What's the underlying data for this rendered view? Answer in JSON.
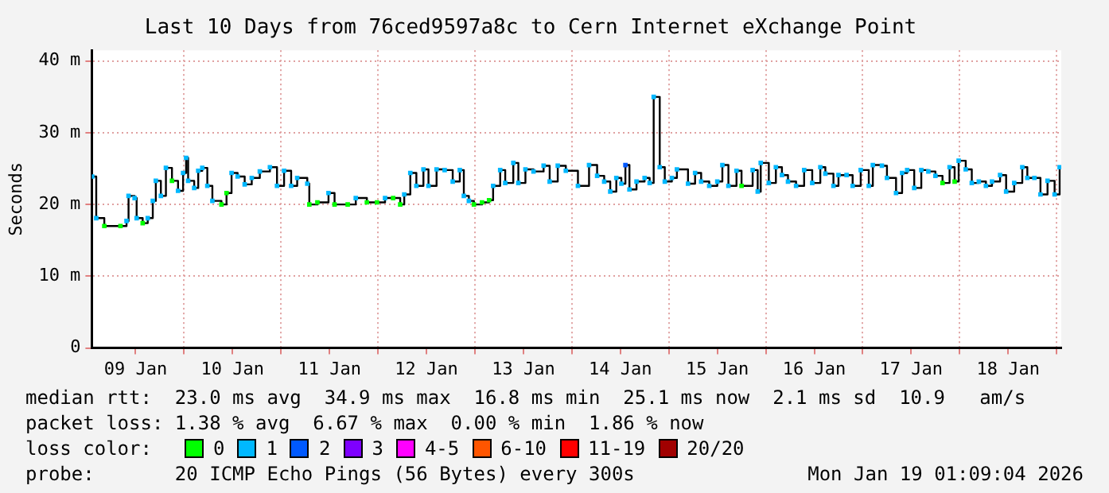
{
  "chart_data": {
    "type": "step",
    "title": "Last 10 Days from 76ced9597a8c to Cern Internet eXchange Point",
    "ylabel": "Seconds",
    "xlim": [
      "2026-01-09T01:09",
      "2026-01-19T01:09"
    ],
    "xticks": [
      {
        "value": "2026-01-09T12:00",
        "label": "09 Jan"
      },
      {
        "value": "2026-01-10T00:00",
        "label": null
      },
      {
        "value": "2026-01-10T12:00",
        "label": "10 Jan"
      },
      {
        "value": "2026-01-11T00:00",
        "label": null
      },
      {
        "value": "2026-01-11T12:00",
        "label": "11 Jan"
      },
      {
        "value": "2026-01-12T00:00",
        "label": null
      },
      {
        "value": "2026-01-12T12:00",
        "label": "12 Jan"
      },
      {
        "value": "2026-01-13T00:00",
        "label": null
      },
      {
        "value": "2026-01-13T12:00",
        "label": "13 Jan"
      },
      {
        "value": "2026-01-14T00:00",
        "label": null
      },
      {
        "value": "2026-01-14T12:00",
        "label": "14 Jan"
      },
      {
        "value": "2026-01-15T00:00",
        "label": null
      },
      {
        "value": "2026-01-15T12:00",
        "label": "15 Jan"
      },
      {
        "value": "2026-01-16T00:00",
        "label": null
      },
      {
        "value": "2026-01-16T12:00",
        "label": "16 Jan"
      },
      {
        "value": "2026-01-17T00:00",
        "label": null
      },
      {
        "value": "2026-01-17T12:00",
        "label": "17 Jan"
      },
      {
        "value": "2026-01-18T00:00",
        "label": null
      },
      {
        "value": "2026-01-18T12:00",
        "label": "18 Jan"
      },
      {
        "value": "2026-01-19T00:00",
        "label": null
      }
    ],
    "ylim": [
      0,
      41.5
    ],
    "yticks": [
      0,
      {
        "value": 10,
        "label": "10 m"
      },
      {
        "value": 20,
        "label": "20 m"
      },
      {
        "value": 30,
        "label": "30 m"
      },
      {
        "value": 40,
        "label": "40 m"
      }
    ],
    "grid": true,
    "legend": "bottom",
    "legend_title": "loss color:",
    "marker": "square",
    "series": [
      {
        "color": "#000000",
        "x": [
          "2026-01-09T01:15",
          "2026-01-09T02:15",
          "2026-01-09T04:15",
          "2026-01-09T08:15",
          "2026-01-09T09:45",
          "2026-01-09T10:15",
          "2026-01-09T11:45",
          "2026-01-09T12:15",
          "2026-01-09T13:45",
          "2026-01-09T15:00",
          "2026-01-09T16:15",
          "2026-01-09T17:00",
          "2026-01-09T18:15",
          "2026-01-09T19:30",
          "2026-01-09T21:00",
          "2026-01-09T22:30",
          "2026-01-09T23:45",
          "2026-01-10T00:30",
          "2026-01-10T01:00",
          "2026-01-10T02:30",
          "2026-01-10T03:30",
          "2026-01-10T04:30",
          "2026-01-10T05:45",
          "2026-01-10T07:00",
          "2026-01-10T09:15",
          "2026-01-10T10:30",
          "2026-01-10T11:45",
          "2026-01-10T13:15",
          "2026-01-10T15:00",
          "2026-01-10T16:45",
          "2026-01-10T18:45",
          "2026-01-10T21:15",
          "2026-01-10T23:00",
          "2026-01-11T00:45",
          "2026-01-11T02:30",
          "2026-01-11T04:00",
          "2026-01-11T06:30",
          "2026-01-11T07:00",
          "2026-01-11T09:00",
          "2026-01-11T11:45",
          "2026-01-11T13:15",
          "2026-01-11T16:30",
          "2026-01-11T18:30",
          "2026-01-11T21:15",
          "2026-01-11T23:45",
          "2026-01-12T01:45",
          "2026-01-12T03:45",
          "2026-01-12T05:30",
          "2026-01-12T06:30",
          "2026-01-12T08:00",
          "2026-01-12T09:30",
          "2026-01-12T11:15",
          "2026-01-12T12:30",
          "2026-01-12T14:30",
          "2026-01-12T16:30",
          "2026-01-12T18:30",
          "2026-01-12T20:15",
          "2026-01-12T21:15",
          "2026-01-12T22:30",
          "2026-01-12T23:45",
          "2026-01-13T01:45",
          "2026-01-13T03:30",
          "2026-01-13T04:30",
          "2026-01-13T06:15",
          "2026-01-13T07:30",
          "2026-01-13T09:30",
          "2026-01-13T10:45",
          "2026-01-13T12:30",
          "2026-01-13T14:30",
          "2026-01-13T17:00",
          "2026-01-13T18:30",
          "2026-01-13T20:30",
          "2026-01-13T22:30",
          "2026-01-14T01:30",
          "2026-01-14T04:15",
          "2026-01-14T06:15",
          "2026-01-14T08:00",
          "2026-01-14T09:30",
          "2026-01-14T11:00",
          "2026-01-14T12:15",
          "2026-01-14T13:15",
          "2026-01-14T14:15",
          "2026-01-14T16:00",
          "2026-01-14T18:00",
          "2026-01-14T19:15",
          "2026-01-14T20:15",
          "2026-01-14T21:45",
          "2026-01-14T23:00",
          "2026-01-15T00:45",
          "2026-01-15T02:00",
          "2026-01-15T04:45",
          "2026-01-15T06:30",
          "2026-01-15T08:00",
          "2026-01-15T10:00",
          "2026-01-15T12:00",
          "2026-01-15T13:15",
          "2026-01-15T14:45",
          "2026-01-15T16:45",
          "2026-01-15T18:00",
          "2026-01-15T20:45",
          "2026-01-15T22:00",
          "2026-01-15T22:45",
          "2026-01-16T00:45",
          "2026-01-16T02:30",
          "2026-01-16T04:00",
          "2026-01-16T05:30",
          "2026-01-16T07:30",
          "2026-01-16T09:30",
          "2026-01-16T11:30",
          "2026-01-16T13:30",
          "2026-01-16T14:45",
          "2026-01-16T16:45",
          "2026-01-16T18:00",
          "2026-01-16T20:00",
          "2026-01-16T21:30",
          "2026-01-16T23:30",
          "2026-01-17T01:30",
          "2026-01-17T02:30",
          "2026-01-17T04:45",
          "2026-01-17T06:00",
          "2026-01-17T08:15",
          "2026-01-17T09:45",
          "2026-01-17T11:00",
          "2026-01-17T12:45",
          "2026-01-17T14:30",
          "2026-01-17T16:15",
          "2026-01-17T18:00",
          "2026-01-17T19:45",
          "2026-01-17T21:30",
          "2026-01-17T22:45",
          "2026-01-17T23:45",
          "2026-01-18T01:30",
          "2026-01-18T03:00",
          "2026-01-18T04:45",
          "2026-01-18T06:30",
          "2026-01-18T08:00",
          "2026-01-18T10:00",
          "2026-01-18T11:30",
          "2026-01-18T13:30",
          "2026-01-18T15:30",
          "2026-01-18T16:45",
          "2026-01-18T18:30",
          "2026-01-18T20:00",
          "2026-01-18T21:45",
          "2026-01-18T23:30",
          "2026-01-19T00:45"
        ],
        "values": [
          23.9,
          18.1,
          17.0,
          17.0,
          17.7,
          21.2,
          20.9,
          18.1,
          17.4,
          18.1,
          20.5,
          23.3,
          21.2,
          25.1,
          23.3,
          21.9,
          24.4,
          26.5,
          23.3,
          22.3,
          24.7,
          25.1,
          22.6,
          20.5,
          20.0,
          21.6,
          24.4,
          23.9,
          22.8,
          23.7,
          24.6,
          25.2,
          22.6,
          24.7,
          22.6,
          23.7,
          22.9,
          20.0,
          20.3,
          21.6,
          20.0,
          20.0,
          20.9,
          20.3,
          20.3,
          20.9,
          20.9,
          20.0,
          21.4,
          24.4,
          22.6,
          24.9,
          22.6,
          24.9,
          24.8,
          23.2,
          24.8,
          21.2,
          20.5,
          20.0,
          20.3,
          20.6,
          22.6,
          24.8,
          23.0,
          25.8,
          23.0,
          24.9,
          24.6,
          25.4,
          23.2,
          25.4,
          24.7,
          22.6,
          25.5,
          24.0,
          23.2,
          21.8,
          23.7,
          22.9,
          25.5,
          22.1,
          23.2,
          23.7,
          23.0,
          35.0,
          25.2,
          23.2,
          23.7,
          24.9,
          22.9,
          24.4,
          23.2,
          22.6,
          23.2,
          25.5,
          22.6,
          24.7,
          22.6,
          24.8,
          21.8,
          25.8,
          23.0,
          25.2,
          24.1,
          23.2,
          22.6,
          24.8,
          23.0,
          25.2,
          24.3,
          22.6,
          24.1,
          24.1,
          22.6,
          24.8,
          22.6,
          25.5,
          25.4,
          23.7,
          21.6,
          24.4,
          24.8,
          22.3,
          24.8,
          24.6,
          24.0,
          23.0,
          25.2,
          23.2,
          26.1,
          24.9,
          23.0,
          23.2,
          22.6,
          23.2,
          24.1,
          21.8,
          23.0,
          25.2,
          23.7,
          23.7,
          21.4,
          23.3,
          21.4,
          25.2
        ],
        "colors": [
          "#00b8ff",
          "#00b8ff",
          "#00ff00",
          "#00ff00",
          "#00b8ff",
          "#00b8ff",
          "#00b8ff",
          "#00b8ff",
          "#00ff00",
          "#00b8ff",
          "#00b8ff",
          "#00b8ff",
          "#00b8ff",
          "#00b8ff",
          "#00ff00",
          "#00b8ff",
          "#00b8ff",
          "#00b8ff",
          "#00b8ff",
          "#00b8ff",
          "#00b8ff",
          "#00b8ff",
          "#00b8ff",
          "#00b8ff",
          "#00ff00",
          "#00ff00",
          "#00b8ff",
          "#00b8ff",
          "#00b8ff",
          "#00b8ff",
          "#00b8ff",
          "#00b8ff",
          "#00b8ff",
          "#00b8ff",
          "#00b8ff",
          "#00b8ff",
          "#00b8ff",
          "#00ff00",
          "#00ff00",
          "#00b8ff",
          "#00ff00",
          "#00ff00",
          "#00b8ff",
          "#00ff00",
          "#00ff00",
          "#00b8ff",
          "#00ff00",
          "#00ff00",
          "#00b8ff",
          "#00b8ff",
          "#00b8ff",
          "#00b8ff",
          "#00b8ff",
          "#00b8ff",
          "#00b8ff",
          "#00b8ff",
          "#00b8ff",
          "#00b8ff",
          "#00b8ff",
          "#00ff00",
          "#00ff00",
          "#00ff00",
          "#00b8ff",
          "#00b8ff",
          "#00b8ff",
          "#00b8ff",
          "#00b8ff",
          "#00b8ff",
          "#00b8ff",
          "#00b8ff",
          "#00b8ff",
          "#00b8ff",
          "#00b8ff",
          "#00b8ff",
          "#00b8ff",
          "#00b8ff",
          "#00b8ff",
          "#00b8ff",
          "#00b8ff",
          "#00b8ff",
          "#0059ff",
          "#00b8ff",
          "#00b8ff",
          "#00b8ff",
          "#00b8ff",
          "#00b8ff",
          "#00b8ff",
          "#00b8ff",
          "#00b8ff",
          "#00b8ff",
          "#00b8ff",
          "#00b8ff",
          "#00b8ff",
          "#00b8ff",
          "#00b8ff",
          "#00b8ff",
          "#00b8ff",
          "#00b8ff",
          "#00ff00",
          "#00b8ff",
          "#00b8ff",
          "#00b8ff",
          "#00b8ff",
          "#00b8ff",
          "#00b8ff",
          "#00b8ff",
          "#00b8ff",
          "#00b8ff",
          "#00b8ff",
          "#00b8ff",
          "#00b8ff",
          "#00b8ff",
          "#00b8ff",
          "#00b8ff",
          "#00b8ff",
          "#00b8ff",
          "#00b8ff",
          "#00b8ff",
          "#00b8ff",
          "#00b8ff",
          "#00b8ff",
          "#00b8ff",
          "#00b8ff",
          "#00b8ff",
          "#00b8ff",
          "#00b8ff",
          "#00b8ff",
          "#00ff00",
          "#00b8ff",
          "#00ff00",
          "#00b8ff",
          "#00b8ff",
          "#00b8ff",
          "#00b8ff",
          "#00b8ff",
          "#00b8ff",
          "#00b8ff",
          "#00b8ff",
          "#00b8ff",
          "#00b8ff",
          "#00b8ff",
          "#00b8ff",
          "#00b8ff",
          "#00b8ff",
          "#00b8ff",
          "#00b8ff"
        ]
      },
      {
        "name": "0",
        "color": "#00ff00"
      },
      {
        "name": "1",
        "color": "#00b8ff"
      },
      {
        "name": "2",
        "color": "#0059ff"
      },
      {
        "name": "3",
        "color": "#7e00ff"
      },
      {
        "name": "4-5",
        "color": "#ff00ff"
      },
      {
        "name": "6-10",
        "color": "#ff5500"
      },
      {
        "name": "11-19",
        "color": "#ff0000"
      },
      {
        "name": "20/20",
        "color": "#a10000"
      }
    ],
    "annotations": [
      "median rtt:  23.0 ms avg  34.9 ms max  16.8 ms min  25.1 ms now  2.1 ms sd  10.9   am/s",
      "packet loss: 1.38 % avg  6.67 % max  0.00 % min  1.86 % now",
      "probe:       20 ICMP Echo Pings (56 Bytes) every 300s",
      "Mon Jan 19 01:09:04 2026"
    ]
  }
}
